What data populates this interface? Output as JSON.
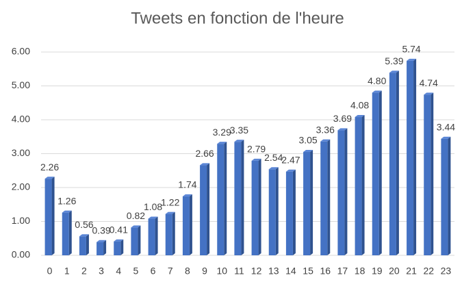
{
  "chart_data": {
    "type": "bar",
    "title": "Tweets en fonction de l'heure",
    "categories": [
      "0",
      "1",
      "2",
      "3",
      "4",
      "5",
      "6",
      "7",
      "8",
      "9",
      "10",
      "11",
      "12",
      "13",
      "14",
      "15",
      "16",
      "17",
      "18",
      "19",
      "20",
      "21",
      "22",
      "23"
    ],
    "values": [
      2.26,
      1.26,
      0.56,
      0.39,
      0.41,
      0.82,
      1.08,
      1.22,
      1.74,
      2.66,
      3.29,
      3.35,
      2.79,
      2.54,
      2.47,
      3.05,
      3.36,
      3.69,
      4.08,
      4.8,
      5.39,
      5.74,
      4.74,
      3.44
    ],
    "value_labels": [
      "2.26",
      "1.26",
      "0.56",
      "0.39",
      "0.41",
      "0.82",
      "1.08",
      "1.22",
      "1.74",
      "2.66",
      "3.29",
      "3.35",
      "2.79",
      "2.54",
      "2.47",
      "3.05",
      "3.36",
      "3.69",
      "4.08",
      "4.80",
      "5.39",
      "5.74",
      "4.74",
      "3.44"
    ],
    "color": "#4472c4",
    "ylim": [
      0,
      6
    ],
    "yticks": [
      {
        "value": 0,
        "label": "0.00"
      },
      {
        "value": 1,
        "label": "1.00"
      },
      {
        "value": 2,
        "label": "2.00"
      },
      {
        "value": 3,
        "label": "3.00"
      },
      {
        "value": 4,
        "label": "4.00"
      },
      {
        "value": 5,
        "label": "5.00"
      },
      {
        "value": 6,
        "label": "6.00"
      }
    ],
    "grid": true
  }
}
